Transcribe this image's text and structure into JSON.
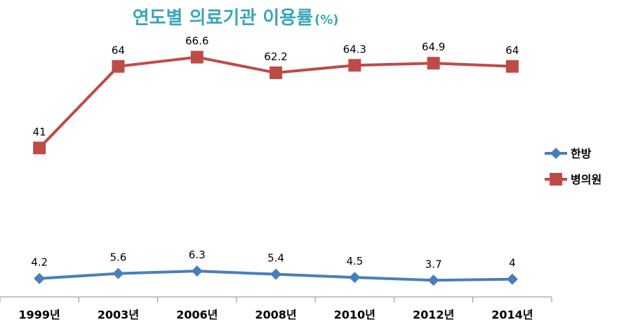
{
  "chart_data": {
    "type": "line",
    "title": "연도별 의료기관 이용률",
    "title_unit": "(%)",
    "categories": [
      "1999년",
      "2003년",
      "2006년",
      "2008년",
      "2010년",
      "2012년",
      "2014년"
    ],
    "series": [
      {
        "name": "한방",
        "values": [
          4.2,
          5.6,
          6.3,
          5.4,
          4.5,
          3.7,
          4
        ],
        "color": "#4a7ebb",
        "marker": "diamond"
      },
      {
        "name": "병의원",
        "values": [
          41,
          64,
          66.6,
          62.2,
          64.3,
          64.9,
          64
        ],
        "color": "#be4b48",
        "marker": "square"
      }
    ],
    "ylim": [
      0,
      76
    ],
    "grid": false,
    "legend": "right",
    "xlabel": "",
    "ylabel": ""
  }
}
